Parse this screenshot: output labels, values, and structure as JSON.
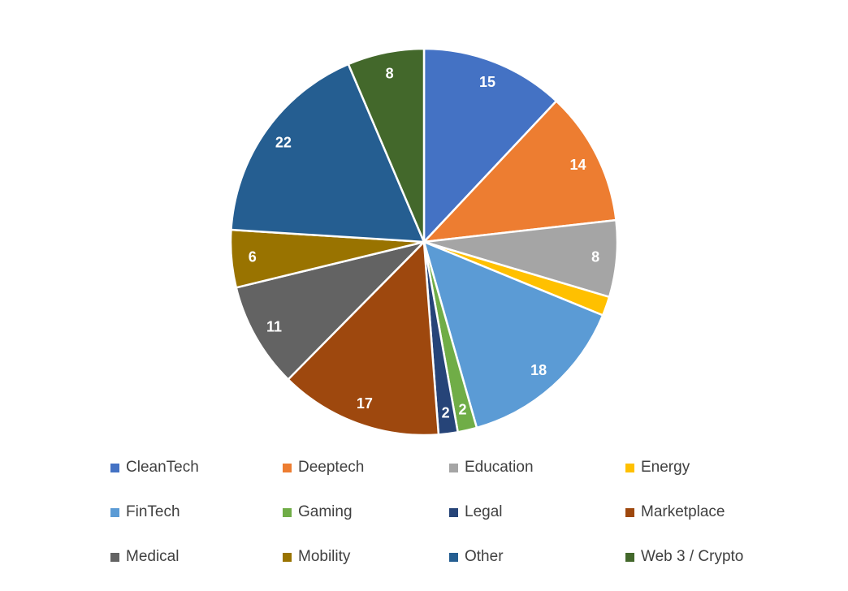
{
  "chart_data": {
    "type": "pie",
    "title": "",
    "legend_position": "bottom",
    "categories": [
      "CleanTech",
      "Deeptech",
      "Education",
      "Energy",
      "FinTech",
      "Gaming",
      "Legal",
      "Marketplace",
      "Medical",
      "Mobility",
      "Other",
      "Web 3 / Crypto"
    ],
    "values": [
      15,
      14,
      8,
      2,
      18,
      2,
      2,
      17,
      11,
      6,
      22,
      8
    ],
    "show_label": [
      true,
      true,
      true,
      false,
      true,
      true,
      true,
      true,
      true,
      true,
      true,
      true
    ],
    "colors": [
      "#4472C4",
      "#ED7D31",
      "#A5A5A5",
      "#FFC000",
      "#5B9BD5",
      "#70AD47",
      "#264478",
      "#9E480E",
      "#636363",
      "#997300",
      "#255E91",
      "#43682B"
    ]
  }
}
